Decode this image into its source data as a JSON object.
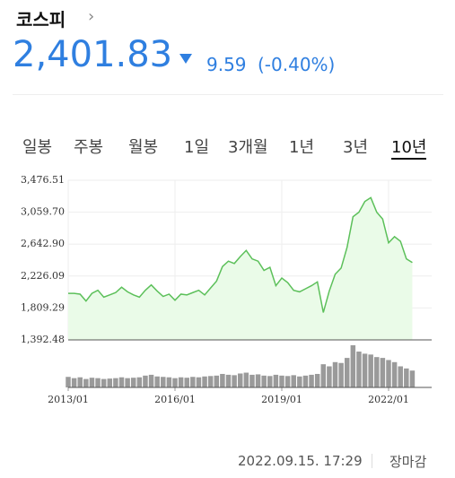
{
  "header": {
    "title": "코스피",
    "price": "2,401.83",
    "change": "9.59",
    "change_pct": "(-0.40%)"
  },
  "tabs": [
    "일봉",
    "주봉",
    "월봉",
    "1일",
    "3개월",
    "1년",
    "3년",
    "10년"
  ],
  "active_tab": 7,
  "chart_data": {
    "type": "line",
    "color": "#5cc05a",
    "fill": "#eafbe8",
    "x": [
      "2013/01",
      "2013/03",
      "2013/05",
      "2013/07",
      "2013/09",
      "2013/11",
      "2014/01",
      "2014/03",
      "2014/05",
      "2014/07",
      "2014/09",
      "2014/11",
      "2015/01",
      "2015/03",
      "2015/05",
      "2015/07",
      "2015/09",
      "2015/11",
      "2016/01",
      "2016/03",
      "2016/05",
      "2016/07",
      "2016/09",
      "2016/11",
      "2017/01",
      "2017/03",
      "2017/05",
      "2017/07",
      "2017/09",
      "2017/11",
      "2018/01",
      "2018/03",
      "2018/05",
      "2018/07",
      "2018/09",
      "2018/11",
      "2019/01",
      "2019/03",
      "2019/05",
      "2019/07",
      "2019/09",
      "2019/11",
      "2020/01",
      "2020/03",
      "2020/05",
      "2020/07",
      "2020/09",
      "2020/11",
      "2021/01",
      "2021/03",
      "2021/05",
      "2021/07",
      "2021/09",
      "2021/11",
      "2022/01",
      "2022/03",
      "2022/05",
      "2022/07",
      "2022/09"
    ],
    "values": [
      2000,
      2000,
      1990,
      1900,
      2000,
      2040,
      1950,
      1980,
      2010,
      2080,
      2020,
      1980,
      1950,
      2040,
      2110,
      2030,
      1960,
      1990,
      1910,
      1990,
      1980,
      2010,
      2040,
      1980,
      2070,
      2160,
      2350,
      2420,
      2390,
      2480,
      2560,
      2450,
      2420,
      2300,
      2340,
      2100,
      2200,
      2140,
      2040,
      2020,
      2060,
      2100,
      2150,
      1750,
      2030,
      2250,
      2330,
      2600,
      3000,
      3060,
      3200,
      3250,
      3060,
      2970,
      2660,
      2740,
      2680,
      2450,
      2401.83
    ],
    "volume": [
      25,
      22,
      24,
      20,
      23,
      22,
      20,
      21,
      22,
      24,
      22,
      23,
      24,
      28,
      30,
      26,
      25,
      24,
      22,
      24,
      23,
      25,
      24,
      26,
      27,
      28,
      32,
      30,
      29,
      33,
      35,
      30,
      31,
      28,
      27,
      30,
      28,
      27,
      29,
      26,
      28,
      30,
      32,
      55,
      50,
      60,
      58,
      70,
      100,
      85,
      80,
      78,
      72,
      70,
      65,
      60,
      50,
      45,
      40
    ],
    "vlim": [
      0,
      100
    ],
    "ylim": [
      1392.48,
      3476.51
    ],
    "yticks": [
      {
        "value": 1392.48,
        "label": "1,392.48"
      },
      {
        "value": 1809.29,
        "label": "1,809.29"
      },
      {
        "value": 2226.09,
        "label": "2,226.09"
      },
      {
        "value": 2642.9,
        "label": "2,642.90"
      },
      {
        "value": 3059.7,
        "label": "3,059.70"
      },
      {
        "value": 3476.51,
        "label": "3,476.51"
      }
    ],
    "xticks": [
      "2013/01",
      "2016/01",
      "2019/01",
      "2022/01"
    ],
    "grid": true
  },
  "footer": {
    "time": "2022.09.15. 17:29",
    "status": "장마감"
  }
}
